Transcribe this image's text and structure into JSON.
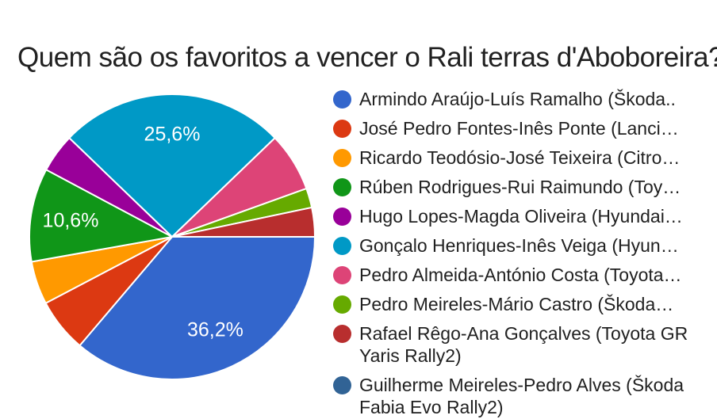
{
  "chart_data": {
    "type": "pie",
    "title": "Quem são os favoritos a vencer o Rali terras d'Aboboreira?",
    "legend_position": "right",
    "start_angle_clockwise_from_east_deg": 0,
    "pie_border_color": "#ffffff",
    "title_color": "#212121",
    "legend_text_color": "#212121",
    "slices": [
      {
        "label": "Armindo Araújo-Luís Ramalho (Škoda..",
        "color": "#3366CC",
        "value_pct": 36.2,
        "pct_label": "36,2%"
      },
      {
        "label": "José Pedro Fontes-Inês Ponte (Lanci…",
        "color": "#DC3912",
        "value_pct": 6.1,
        "pct_label": ""
      },
      {
        "label": "Ricardo Teodósio-José Teixeira (Citro…",
        "color": "#FF9900",
        "value_pct": 4.9,
        "pct_label": ""
      },
      {
        "label": "Rúben Rodrigues-Rui Raimundo (Toy…",
        "color": "#109618",
        "value_pct": 10.6,
        "pct_label": "10,6%"
      },
      {
        "label": "Hugo Lopes-Magda Oliveira (Hyundai…",
        "color": "#990099",
        "value_pct": 4.4,
        "pct_label": ""
      },
      {
        "label": "Gonçalo Henriques-Inês Veiga (Hyun…",
        "color": "#0099C6",
        "value_pct": 25.6,
        "pct_label": "25,6%"
      },
      {
        "label": "Pedro Almeida-António Costa (Toyota…",
        "color": "#DD4477",
        "value_pct": 6.7,
        "pct_label": ""
      },
      {
        "label": "Pedro Meireles-Mário Castro (Škoda…",
        "color": "#66AA00",
        "value_pct": 2.2,
        "pct_label": ""
      },
      {
        "label": "Rafael Rêgo-Ana Gonçalves (Toyota GR Yaris Rally2)",
        "color": "#B82E2E",
        "value_pct": 3.3,
        "pct_label": ""
      },
      {
        "label": "Guilherme Meireles-Pedro Alves (Škoda Fabia Evo Rally2)",
        "color": "#316395",
        "value_pct": 0.0,
        "pct_label": ""
      }
    ]
  }
}
